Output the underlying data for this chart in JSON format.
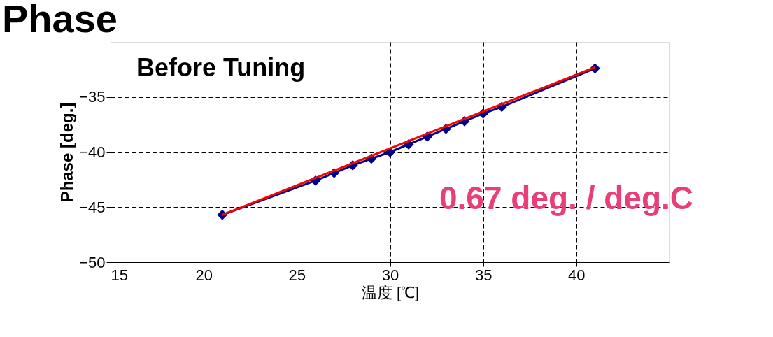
{
  "chart_data": {
    "type": "line",
    "title": "Phase",
    "xlabel": "温度 [℃]",
    "ylabel": "Phase [deg.]",
    "annotations": [
      "Before Tuning",
      "0.67 deg. / deg.C"
    ],
    "series": [
      {
        "color": "#00008b",
        "marker": "diamond",
        "x": [
          21,
          26,
          27,
          28,
          29,
          30,
          31,
          32,
          33,
          34,
          35,
          36,
          41
        ],
        "values": [
          -45.7,
          -42.6,
          -41.9,
          -41.2,
          -40.6,
          -40.0,
          -39.3,
          -38.6,
          -37.9,
          -37.2,
          -36.5,
          -35.9,
          -32.4
        ]
      },
      {
        "color": "#ff0000",
        "marker": "none",
        "x": [
          21,
          41
        ],
        "values": [
          -45.7,
          -32.3
        ]
      }
    ],
    "xlim": [
      15,
      45
    ],
    "xticks": [
      15,
      20,
      25,
      30,
      35,
      40
    ],
    "ylim": [
      -50,
      -30
    ],
    "yticks": [
      -50,
      -45,
      -40,
      -35
    ],
    "grid": true,
    "line_style": "solid"
  }
}
